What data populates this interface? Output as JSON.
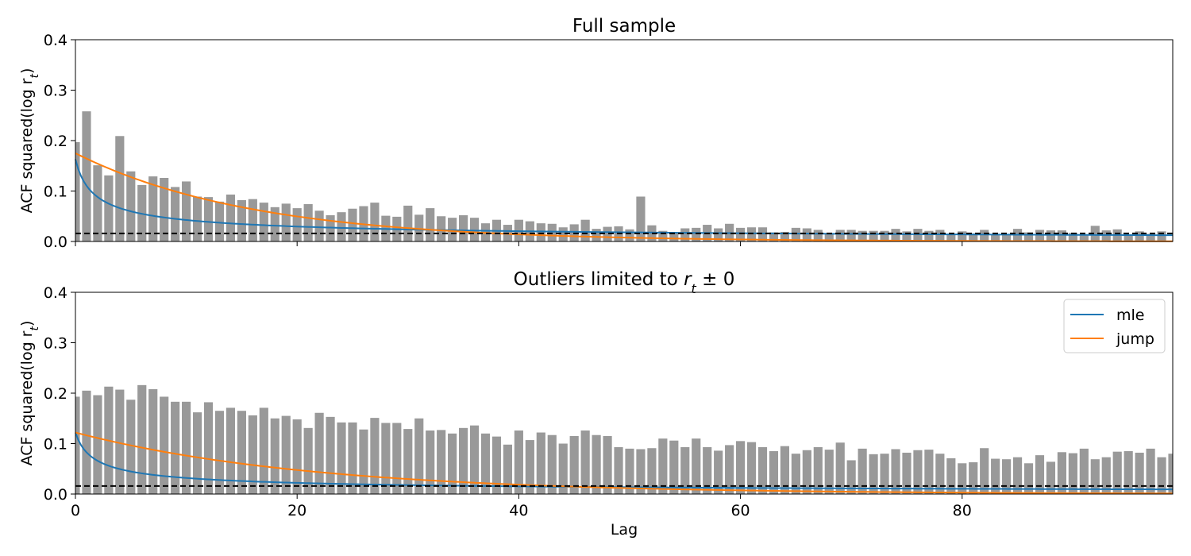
{
  "chart_data": [
    {
      "type": "bar",
      "title": "Full sample",
      "xlabel": "",
      "ylabel": "ACF squared(log r",
      "ylabel_subscript": "t",
      "ylabel_close": ")",
      "xlim": [
        0,
        99
      ],
      "ylim": [
        0,
        0.4
      ],
      "xticks": [
        0,
        20,
        40,
        60,
        80
      ],
      "yticks": [
        0.0,
        0.1,
        0.2,
        0.3,
        0.4
      ],
      "ytick_labels": [
        "0.0",
        "0.1",
        "0.2",
        "0.3",
        "0.4"
      ],
      "show_xtick_labels": false,
      "bar_color": "#999999",
      "bars": [
        0.197,
        0.258,
        0.151,
        0.131,
        0.209,
        0.139,
        0.112,
        0.129,
        0.126,
        0.108,
        0.119,
        0.089,
        0.088,
        0.079,
        0.093,
        0.082,
        0.084,
        0.077,
        0.068,
        0.075,
        0.066,
        0.074,
        0.061,
        0.052,
        0.058,
        0.065,
        0.07,
        0.077,
        0.051,
        0.049,
        0.071,
        0.053,
        0.066,
        0.05,
        0.047,
        0.052,
        0.047,
        0.036,
        0.043,
        0.033,
        0.043,
        0.04,
        0.036,
        0.035,
        0.028,
        0.034,
        0.043,
        0.025,
        0.029,
        0.03,
        0.024,
        0.089,
        0.032,
        0.021,
        0.017,
        0.026,
        0.027,
        0.033,
        0.026,
        0.035,
        0.027,
        0.028,
        0.028,
        0.018,
        0.019,
        0.027,
        0.026,
        0.023,
        0.016,
        0.023,
        0.023,
        0.021,
        0.021,
        0.021,
        0.025,
        0.02,
        0.025,
        0.021,
        0.023,
        0.015,
        0.02,
        0.016,
        0.023,
        0.013,
        0.014,
        0.025,
        0.018,
        0.023,
        0.022,
        0.022,
        0.017,
        0.013,
        0.031,
        0.022,
        0.024,
        0.012,
        0.02,
        0.015,
        0.02
      ],
      "threshold": 0.016,
      "series": [
        {
          "name": "mle",
          "color": "#1f77b4",
          "model": "power",
          "a": 0.163,
          "b": 0.56
        },
        {
          "name": "jump",
          "color": "#ff7f0e",
          "model": "exp",
          "a": 0.175,
          "b": 0.063
        }
      ],
      "legend": null
    },
    {
      "type": "bar",
      "title": "Outliers limited to ",
      "title_math_base": "r",
      "title_math_sub": "t",
      "title_math_suffix": " ± 0",
      "xlabel": "Lag",
      "ylabel": "ACF squared(log r",
      "ylabel_subscript": "t",
      "ylabel_close": ")",
      "xlim": [
        0,
        99
      ],
      "ylim": [
        0,
        0.4
      ],
      "xticks": [
        0,
        20,
        40,
        60,
        80
      ],
      "xtick_labels": [
        "0",
        "20",
        "40",
        "60",
        "80"
      ],
      "yticks": [
        0.0,
        0.1,
        0.2,
        0.3,
        0.4
      ],
      "ytick_labels": [
        "0.0",
        "0.1",
        "0.2",
        "0.3",
        "0.4"
      ],
      "show_xtick_labels": true,
      "bar_color": "#999999",
      "bars": [
        0.193,
        0.205,
        0.196,
        0.213,
        0.207,
        0.187,
        0.216,
        0.208,
        0.193,
        0.183,
        0.183,
        0.162,
        0.182,
        0.165,
        0.171,
        0.165,
        0.156,
        0.171,
        0.15,
        0.155,
        0.148,
        0.131,
        0.161,
        0.153,
        0.142,
        0.142,
        0.128,
        0.151,
        0.141,
        0.141,
        0.129,
        0.15,
        0.126,
        0.127,
        0.12,
        0.131,
        0.136,
        0.12,
        0.114,
        0.098,
        0.126,
        0.107,
        0.122,
        0.117,
        0.1,
        0.115,
        0.126,
        0.117,
        0.115,
        0.093,
        0.09,
        0.089,
        0.091,
        0.11,
        0.106,
        0.093,
        0.11,
        0.093,
        0.086,
        0.097,
        0.105,
        0.103,
        0.093,
        0.085,
        0.095,
        0.08,
        0.087,
        0.093,
        0.088,
        0.102,
        0.067,
        0.09,
        0.079,
        0.08,
        0.089,
        0.082,
        0.087,
        0.088,
        0.08,
        0.071,
        0.061,
        0.063,
        0.091,
        0.07,
        0.069,
        0.073,
        0.061,
        0.077,
        0.064,
        0.083,
        0.081,
        0.09,
        0.069,
        0.073,
        0.084,
        0.085,
        0.082,
        0.09,
        0.073,
        0.08
      ],
      "threshold": 0.016,
      "series": [
        {
          "name": "mle",
          "color": "#1f77b4",
          "model": "power",
          "a": 0.122,
          "b": 0.56
        },
        {
          "name": "jump",
          "color": "#ff7f0e",
          "model": "exp",
          "a": 0.122,
          "b": 0.047
        }
      ],
      "legend": {
        "position": "top-right",
        "entries": [
          "mle",
          "jump"
        ]
      }
    }
  ]
}
